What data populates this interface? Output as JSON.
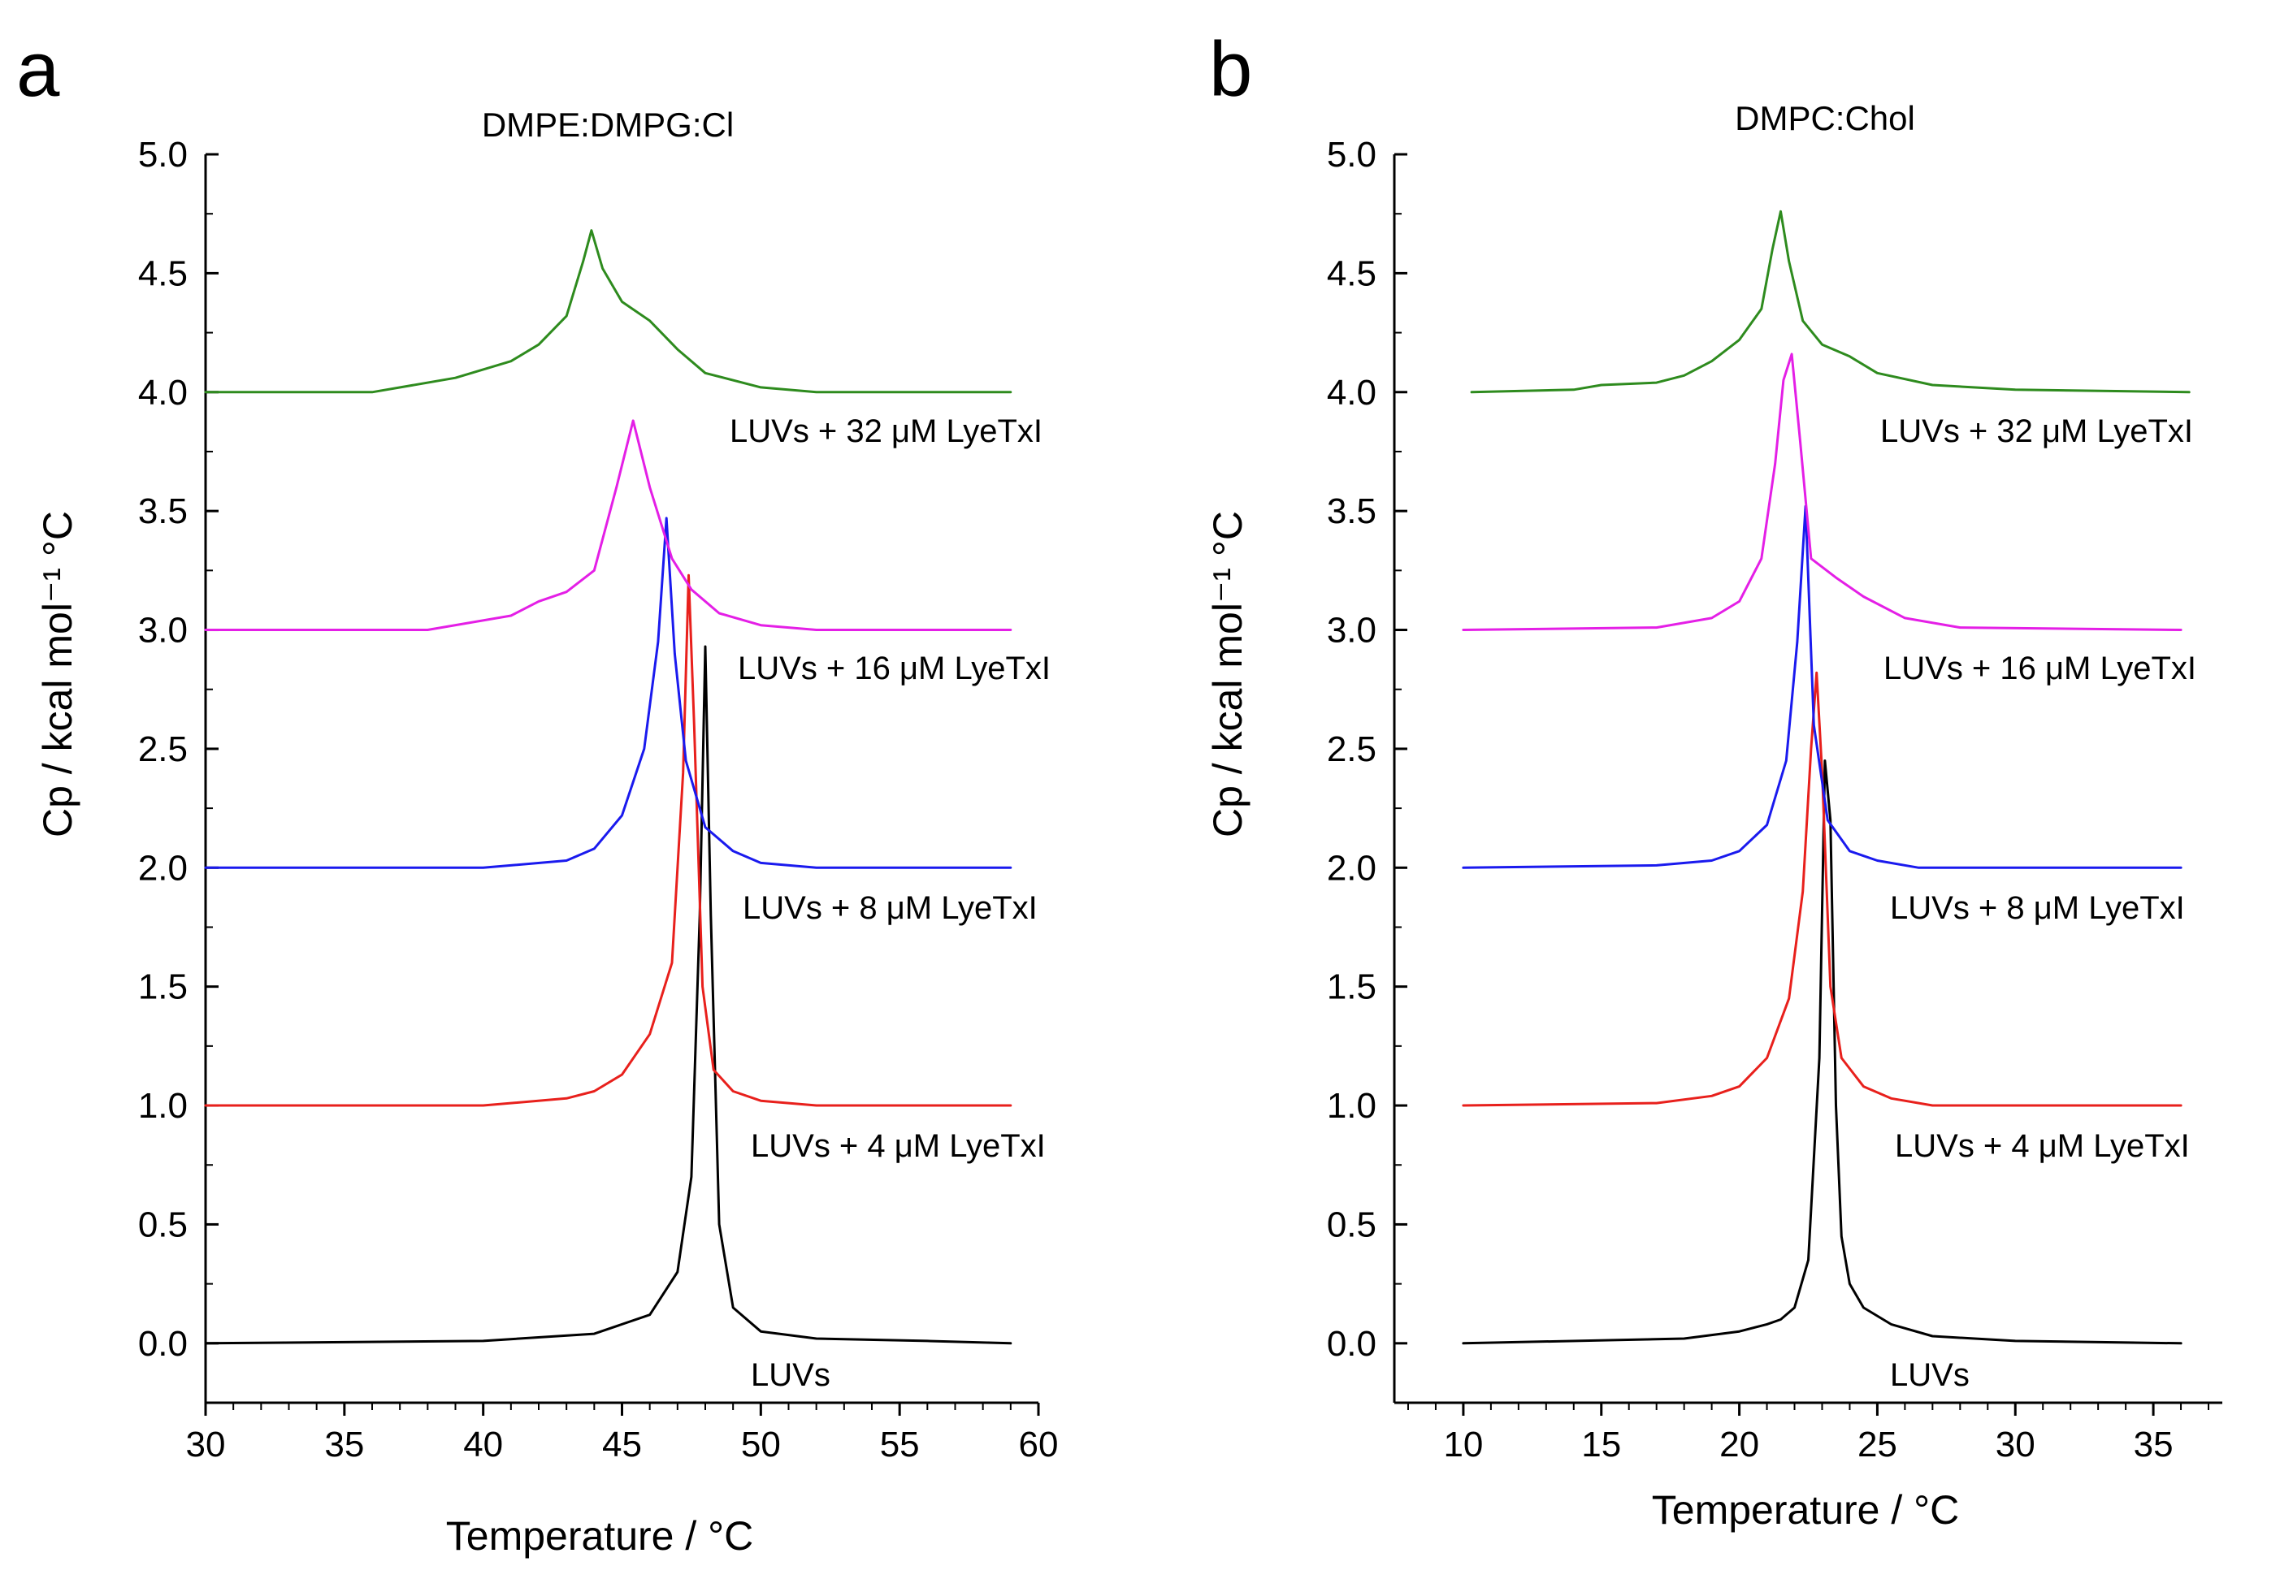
{
  "chart_data": [
    {
      "panel_label": "a",
      "type": "line",
      "title": "DMPE:DMPG:Cl",
      "xlabel": "Temperature / °C",
      "ylabel": "Cp / kcal mol⁻¹ °C",
      "xlim": [
        30,
        60
      ],
      "ylim": [
        -0.25,
        5.0
      ],
      "xticks": [
        "30",
        "35",
        "40",
        "45",
        "50",
        "55",
        "60"
      ],
      "yticks": [
        "0.0",
        "0.5",
        "1.0",
        "1.5",
        "2.0",
        "2.5",
        "3.0",
        "3.5",
        "4.0",
        "4.5",
        "5.0"
      ],
      "series": [
        {
          "name": "LUVs",
          "color": "#000000",
          "x": [
            30,
            40,
            44,
            46,
            47,
            47.5,
            47.8,
            48.0,
            48.2,
            48.5,
            49,
            50,
            52,
            56,
            59
          ],
          "y": [
            0.0,
            0.01,
            0.04,
            0.12,
            0.3,
            0.7,
            1.8,
            2.93,
            1.8,
            0.5,
            0.15,
            0.05,
            0.02,
            0.01,
            0.0
          ]
        },
        {
          "name": "LUVs + 4 μM LyeTxI",
          "color": "#e8201c",
          "x": [
            30,
            40,
            43,
            44,
            45,
            46,
            46.8,
            47.2,
            47.4,
            47.6,
            47.9,
            48.3,
            49,
            50,
            52,
            59
          ],
          "y": [
            1.0,
            1.0,
            1.03,
            1.06,
            1.13,
            1.3,
            1.6,
            2.4,
            3.23,
            2.6,
            1.5,
            1.15,
            1.06,
            1.02,
            1.0,
            1.0
          ]
        },
        {
          "name": "LUVs + 8 μM LyeTxI",
          "color": "#1a1aee",
          "x": [
            30,
            40,
            43,
            44,
            45,
            45.8,
            46.3,
            46.6,
            46.9,
            47.3,
            48,
            49,
            50,
            52,
            59
          ],
          "y": [
            2.0,
            2.0,
            2.03,
            2.08,
            2.22,
            2.5,
            2.95,
            3.47,
            2.9,
            2.45,
            2.17,
            2.07,
            2.02,
            2.0,
            2.0
          ]
        },
        {
          "name": "LUVs + 16 μM LyeTxI",
          "color": "#e41fe6",
          "x": [
            30,
            38,
            41,
            42,
            43,
            44,
            44.8,
            45.4,
            46,
            46.8,
            47.5,
            48.5,
            50,
            52,
            59
          ],
          "y": [
            3.0,
            3.0,
            3.06,
            3.12,
            3.16,
            3.25,
            3.6,
            3.88,
            3.6,
            3.3,
            3.17,
            3.07,
            3.02,
            3.0,
            3.0
          ]
        },
        {
          "name": "LUVs + 32 μM LyeTxI",
          "color": "#2e8b1e",
          "x": [
            30,
            36,
            39,
            41,
            42,
            43,
            43.6,
            43.9,
            44.3,
            45,
            46,
            47,
            48,
            50,
            52,
            59
          ],
          "y": [
            4.0,
            4.0,
            4.06,
            4.13,
            4.2,
            4.32,
            4.55,
            4.68,
            4.52,
            4.38,
            4.3,
            4.18,
            4.08,
            4.02,
            4.0,
            4.0
          ]
        }
      ],
      "annotations": [
        "LUVs",
        "LUVs + 4 μM LyeTxI",
        "LUVs + 8 μM LyeTxI",
        "LUVs + 16 μM LyeTxI",
        "LUVs + 32 μM LyeTxI"
      ]
    },
    {
      "panel_label": "b",
      "type": "line",
      "title": "DMPC:Chol",
      "xlabel": "Temperature / °C",
      "ylabel": "Cp / kcal mol⁻¹ °C",
      "xlim": [
        7.5,
        37.5
      ],
      "ylim": [
        -0.25,
        5.0
      ],
      "xticks": [
        "10",
        "15",
        "20",
        "25",
        "30",
        "35"
      ],
      "yticks": [
        "0.0",
        "0.5",
        "1.0",
        "1.5",
        "2.0",
        "2.5",
        "3.0",
        "3.5",
        "4.0",
        "4.5",
        "5.0"
      ],
      "series": [
        {
          "name": "LUVs",
          "color": "#000000",
          "x": [
            10,
            18,
            20,
            21,
            21.5,
            22,
            22.5,
            22.9,
            23.1,
            23.3,
            23.5,
            23.7,
            24,
            24.5,
            25.5,
            27,
            30,
            36
          ],
          "y": [
            0.0,
            0.02,
            0.05,
            0.08,
            0.1,
            0.15,
            0.35,
            1.2,
            2.45,
            2.2,
            1.0,
            0.45,
            0.25,
            0.15,
            0.08,
            0.03,
            0.01,
            0.0
          ]
        },
        {
          "name": "LUVs + 4 μM LyeTxI",
          "color": "#e8201c",
          "x": [
            10,
            17,
            19,
            20,
            21,
            21.8,
            22.3,
            22.6,
            22.8,
            23.0,
            23.3,
            23.7,
            24.5,
            25.5,
            27,
            36
          ],
          "y": [
            1.0,
            1.01,
            1.04,
            1.08,
            1.2,
            1.45,
            1.9,
            2.5,
            2.82,
            2.4,
            1.5,
            1.2,
            1.08,
            1.03,
            1.0,
            1.0
          ]
        },
        {
          "name": "LUVs + 8 μM LyeTxI",
          "color": "#1a1aee",
          "x": [
            10,
            17,
            19,
            20,
            21,
            21.7,
            22.1,
            22.4,
            22.7,
            23.2,
            24,
            25,
            26.5,
            36
          ],
          "y": [
            2.0,
            2.01,
            2.03,
            2.07,
            2.18,
            2.45,
            2.95,
            3.52,
            2.6,
            2.2,
            2.07,
            2.03,
            2.0,
            2.0
          ]
        },
        {
          "name": "LUVs + 16 μM LyeTxI",
          "color": "#e41fe6",
          "x": [
            10,
            17,
            19,
            20,
            20.8,
            21.3,
            21.6,
            21.9,
            22.2,
            22.6,
            23.5,
            24.5,
            26,
            28,
            36
          ],
          "y": [
            3.0,
            3.01,
            3.05,
            3.12,
            3.3,
            3.7,
            4.05,
            4.16,
            3.8,
            3.3,
            3.22,
            3.14,
            3.05,
            3.01,
            3.0
          ]
        },
        {
          "name": "LUVs + 32 μM LyeTxI",
          "color": "#2e8b1e",
          "x": [
            10.3,
            14,
            15,
            17,
            18,
            19,
            20,
            20.8,
            21.2,
            21.5,
            21.8,
            22.3,
            23,
            24,
            25,
            27,
            30,
            36.3
          ],
          "y": [
            4.0,
            4.01,
            4.03,
            4.04,
            4.07,
            4.13,
            4.22,
            4.35,
            4.6,
            4.76,
            4.55,
            4.3,
            4.2,
            4.15,
            4.08,
            4.03,
            4.01,
            4.0
          ]
        }
      ],
      "annotations": [
        "LUVs",
        "LUVs + 4 μM LyeTxI",
        "LUVs + 8 μM LyeTxI",
        "LUVs + 16 μM LyeTxI",
        "LUVs + 32 μM LyeTxI"
      ]
    }
  ]
}
